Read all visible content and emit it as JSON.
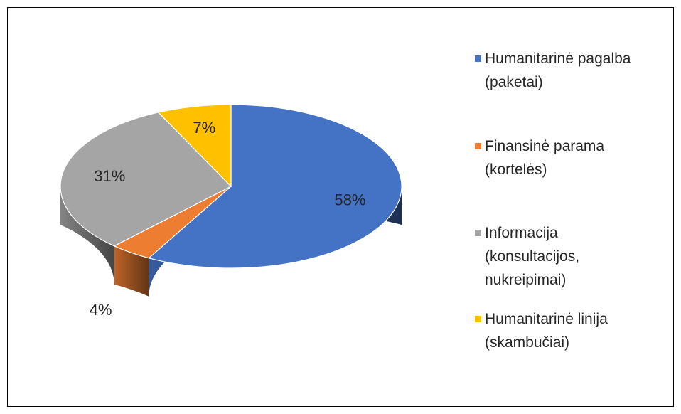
{
  "chart_data": {
    "type": "pie",
    "categories": [
      "Humanitarinė pagalba (paketai)",
      "Finansinė parama (kortelės)",
      "Informacija (konsultacijos, nukreipimai)",
      "Humanitarinė linija (skambučiai)"
    ],
    "values": [
      58,
      4,
      31,
      7
    ],
    "value_labels": [
      "58%",
      "4%",
      "31%",
      "7%"
    ],
    "colors": [
      "#4472c4",
      "#ed7d31",
      "#a5a5a5",
      "#ffc000"
    ],
    "legend": "right"
  }
}
